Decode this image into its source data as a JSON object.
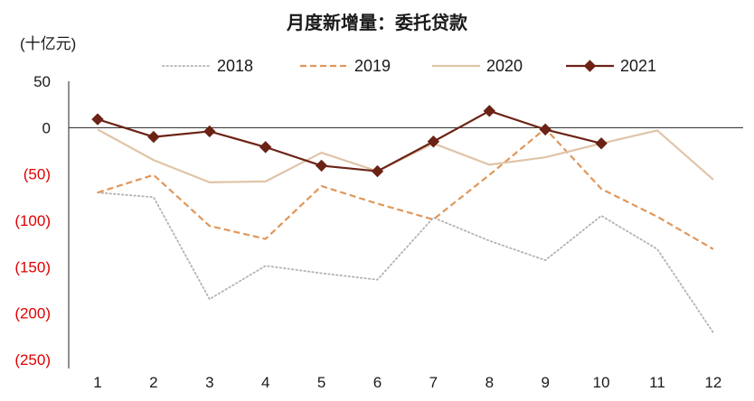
{
  "chart_data": {
    "type": "line",
    "title": "月度新增量：委托贷款",
    "ylabel": "(十亿元)",
    "xlabel": "",
    "x": [
      1,
      2,
      3,
      4,
      5,
      6,
      7,
      8,
      9,
      10,
      11,
      12
    ],
    "ylim": [
      -250,
      50
    ],
    "yticks": [
      50,
      0,
      -50,
      -100,
      -150,
      -200,
      -250
    ],
    "ytick_labels": [
      "50",
      "0",
      "(50)",
      "(100)",
      "(150)",
      "(200)",
      "(250)"
    ],
    "negative_tick_color": "#e00000",
    "grid": false,
    "legend_position": "top",
    "series": [
      {
        "name": "2018",
        "color": "#b3b3b3",
        "style": "dotted",
        "values": [
          -70,
          -75,
          -185,
          -149,
          -157,
          -164,
          -97,
          -122,
          -143,
          -95,
          -131,
          -221
        ]
      },
      {
        "name": "2019",
        "color": "#e0975a",
        "style": "dashed",
        "values": [
          -70,
          -51,
          -106,
          -120,
          -63,
          -82,
          -99,
          -51,
          -1,
          -66,
          -96,
          -131
        ]
      },
      {
        "name": "2020",
        "color": "#e0c4a7",
        "style": "solid",
        "values": [
          -2,
          -35,
          -59,
          -58,
          -27,
          -47,
          -17,
          -40,
          -32,
          -17,
          -3,
          -56
        ]
      },
      {
        "name": "2021",
        "color": "#6b2316",
        "style": "solid-diamond",
        "values": [
          9,
          -10,
          -4,
          -21,
          -41,
          -47,
          -15,
          18,
          -2,
          -17,
          null,
          null
        ]
      }
    ]
  }
}
